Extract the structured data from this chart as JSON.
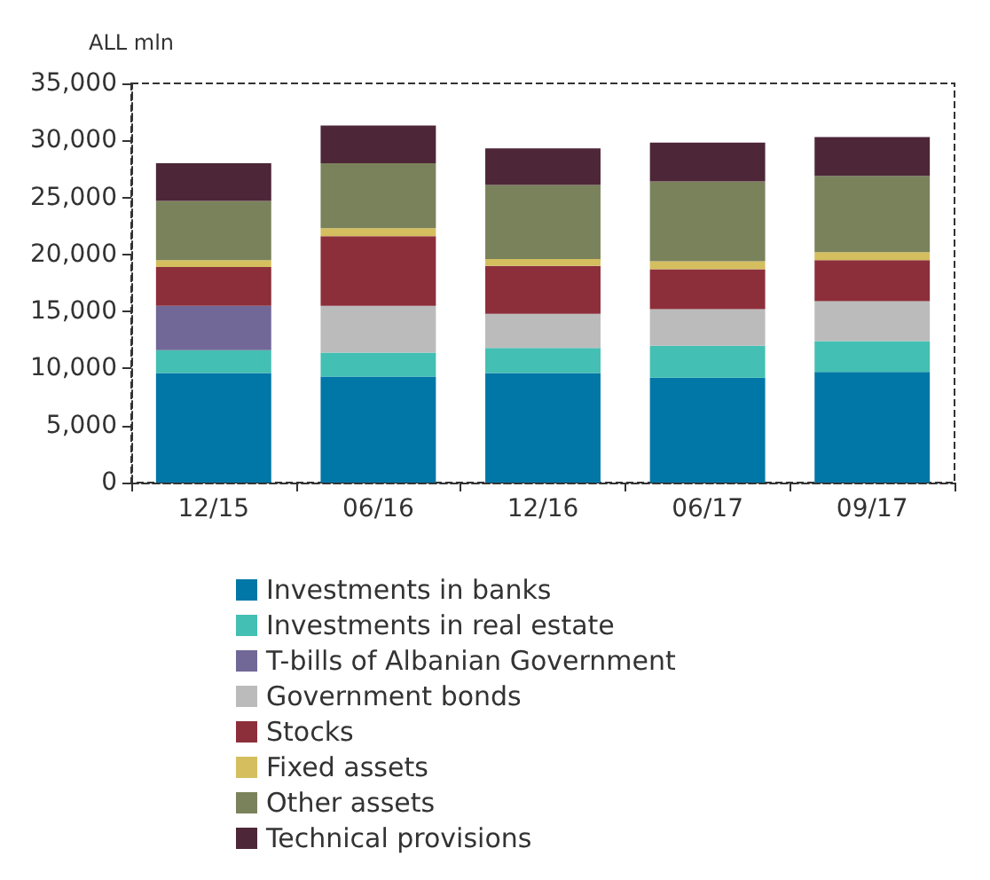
{
  "chart_data": {
    "type": "bar",
    "stacked": true,
    "ylabel": "ALL mln",
    "categories": [
      "12/15",
      "06/16",
      "12/16",
      "06/17",
      "09/17"
    ],
    "ylim": [
      0,
      35000
    ],
    "yticks": [
      0,
      {
        "value": 5000,
        "label": "5,000"
      },
      {
        "value": 10000,
        "label": "10,000"
      },
      {
        "value": 15000,
        "label": "15,000"
      },
      {
        "value": 20000,
        "label": "20,000"
      },
      {
        "value": 25000,
        "label": "25,000"
      },
      {
        "value": 30000,
        "label": "30,000"
      },
      {
        "value": 35000,
        "label": "35,000"
      }
    ],
    "grid": false,
    "legend": "bottom",
    "series": [
      {
        "name": "Investments in banks",
        "color": "#0077a6",
        "values": [
          9600,
          9300,
          9600,
          9200,
          9700
        ]
      },
      {
        "name": "Investments in real estate",
        "color": "#43bfb3",
        "values": [
          2000,
          2100,
          2200,
          2800,
          2700
        ]
      },
      {
        "name": "T-bills of Albanian Government",
        "color": "#716897",
        "values": [
          3900,
          null,
          null,
          null,
          null
        ]
      },
      {
        "name": "Government bonds",
        "color": "#bbbbbb",
        "values": [
          null,
          4100,
          3000,
          3200,
          3500
        ]
      },
      {
        "name": "Stocks",
        "color": "#8c2f3b",
        "values": [
          3400,
          6100,
          4200,
          3500,
          3600
        ]
      },
      {
        "name": "Fixed assets",
        "color": "#d4be5e",
        "values": [
          600,
          700,
          600,
          700,
          700
        ]
      },
      {
        "name": "Other assets",
        "color": "#7a825b",
        "values": [
          5200,
          5700,
          6500,
          7000,
          6700
        ]
      },
      {
        "name": "Technical provisions",
        "color": "#4d2638",
        "values": [
          3300,
          3300,
          3200,
          3400,
          3400
        ]
      }
    ]
  }
}
